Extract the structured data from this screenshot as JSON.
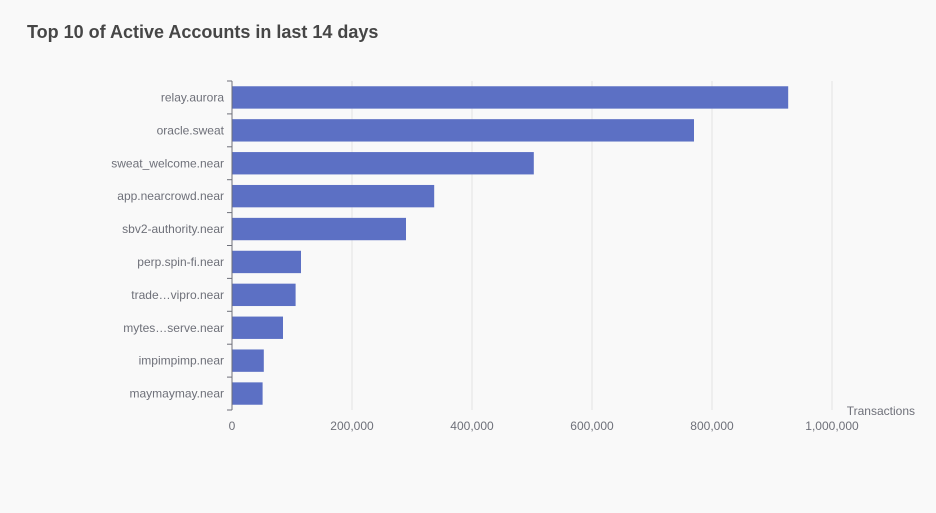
{
  "colors": {
    "bar": "#5c70c4",
    "background": "#f9f9f9",
    "grid": "#e4e4e4",
    "axis": "#6e7079",
    "title": "#464646"
  },
  "chart_data": {
    "type": "bar",
    "orientation": "horizontal",
    "title": "Top 10 of Active Accounts in last 14 days",
    "xlabel": "Transactions",
    "ylabel": "",
    "categories": [
      "relay.aurora",
      "oracle.sweat",
      "sweat_welcome.near",
      "app.nearcrowd.near",
      "sbv2-authority.near",
      "perp.spin-fi.near",
      "trade…vipro.near",
      "mytes…serve.near",
      "impimpimp.near",
      "maymaymay.near"
    ],
    "values": [
      927000,
      770000,
      503000,
      337000,
      290000,
      115000,
      106000,
      85000,
      53000,
      51000
    ],
    "xlim": [
      0,
      1000000
    ],
    "xticks": [
      0,
      200000,
      400000,
      600000,
      800000,
      1000000
    ],
    "xtick_labels": [
      "0",
      "200,000",
      "400,000",
      "600,000",
      "800,000",
      "1,000,000"
    ],
    "grid": "vertical",
    "legend": "none"
  }
}
